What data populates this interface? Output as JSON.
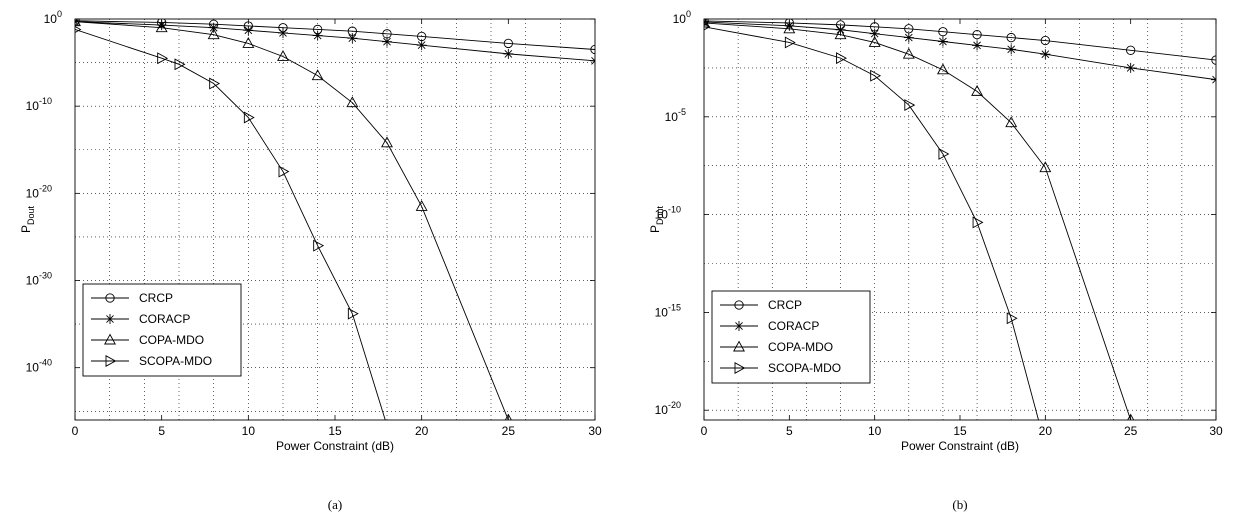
{
  "chart_data": [
    {
      "type": "line",
      "caption": "(a)",
      "xlabel": "Power Constraint (dB)",
      "ylabel_main": "P",
      "ylabel_sub": "Dout",
      "xlim": [
        0,
        30
      ],
      "xticks": [
        0,
        5,
        10,
        15,
        20,
        25,
        30
      ],
      "yscale": "log",
      "ylim_exp": [
        -46,
        0
      ],
      "ytick_exps": [
        0,
        -10,
        -20,
        -30,
        -40
      ],
      "grid": true,
      "legend_position": "bottom-left",
      "series": [
        {
          "name": "CRCP",
          "marker": "circle",
          "x": [
            0,
            5,
            8,
            10,
            12,
            14,
            16,
            18,
            20,
            25,
            30
          ],
          "y_exp": [
            -0.2,
            -0.4,
            -0.6,
            -0.8,
            -1.0,
            -1.2,
            -1.4,
            -1.7,
            -2.0,
            -2.8,
            -3.5
          ]
        },
        {
          "name": "CORACP",
          "marker": "star",
          "x": [
            0,
            5,
            8,
            10,
            12,
            14,
            16,
            18,
            20,
            25,
            30
          ],
          "y_exp": [
            -0.3,
            -0.7,
            -1.0,
            -1.3,
            -1.6,
            -1.9,
            -2.2,
            -2.6,
            -3.0,
            -4.0,
            -4.8
          ]
        },
        {
          "name": "COPA-MDO",
          "marker": "triangle-up",
          "x": [
            0,
            5,
            8,
            10,
            12,
            14,
            16,
            18,
            20,
            25
          ],
          "y_exp": [
            -0.3,
            -1.0,
            -1.8,
            -2.8,
            -4.3,
            -6.5,
            -9.6,
            -14.2,
            -21.5,
            -46
          ]
        },
        {
          "name": "SCOPA-MDO",
          "marker": "triangle-right",
          "x": [
            0,
            5,
            6,
            8,
            10,
            12,
            14,
            16,
            17.9
          ],
          "y_exp": [
            -1.2,
            -4.5,
            -5.2,
            -7.4,
            -11.3,
            -17.5,
            -26.0,
            -33.8,
            -46
          ]
        }
      ]
    },
    {
      "type": "line",
      "caption": "(b)",
      "xlabel": "Power Constraint (dB)",
      "ylabel_main": "P",
      "ylabel_sub": "Dout",
      "xlim": [
        0,
        30
      ],
      "xticks": [
        0,
        5,
        10,
        15,
        20,
        25,
        30
      ],
      "yscale": "log",
      "ylim_exp": [
        -20.5,
        0
      ],
      "ytick_exps": [
        0,
        -5,
        -10,
        -15,
        -20
      ],
      "grid": true,
      "legend_position": "bottom-left",
      "series": [
        {
          "name": "CRCP",
          "marker": "circle",
          "x": [
            0,
            5,
            8,
            10,
            12,
            14,
            16,
            18,
            20,
            25,
            30
          ],
          "y_exp": [
            -0.1,
            -0.2,
            -0.3,
            -0.4,
            -0.5,
            -0.65,
            -0.8,
            -0.95,
            -1.1,
            -1.6,
            -2.1
          ]
        },
        {
          "name": "CORACP",
          "marker": "star",
          "x": [
            0,
            5,
            8,
            10,
            12,
            14,
            16,
            18,
            20,
            25,
            30
          ],
          "y_exp": [
            -0.15,
            -0.35,
            -0.55,
            -0.75,
            -0.95,
            -1.15,
            -1.35,
            -1.55,
            -1.8,
            -2.5,
            -3.1
          ]
        },
        {
          "name": "COPA-MDO",
          "marker": "triangle-up",
          "x": [
            0,
            5,
            8,
            10,
            12,
            14,
            16,
            18,
            20,
            25
          ],
          "y_exp": [
            -0.2,
            -0.5,
            -0.8,
            -1.2,
            -1.8,
            -2.6,
            -3.7,
            -5.3,
            -7.6,
            -20.5
          ]
        },
        {
          "name": "SCOPA-MDO",
          "marker": "triangle-right",
          "x": [
            0,
            5,
            8,
            10,
            12,
            14,
            16,
            18,
            19.6
          ],
          "y_exp": [
            -0.4,
            -1.2,
            -2.0,
            -2.9,
            -4.4,
            -6.9,
            -10.4,
            -15.3,
            -20.5
          ]
        }
      ]
    }
  ]
}
